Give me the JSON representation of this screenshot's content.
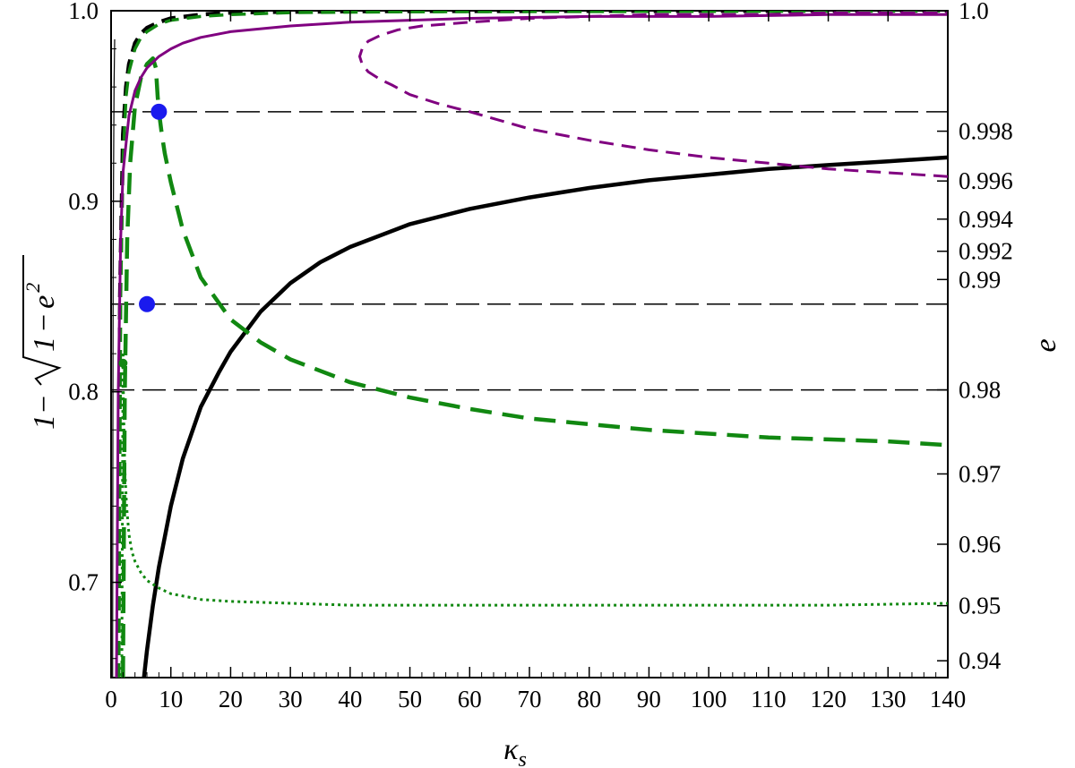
{
  "chart_data": {
    "type": "line",
    "title": "",
    "xlabel": "κ",
    "xlabel_sub": "s",
    "ylabel": "1 - √(1 - e²)",
    "ylabel_parts": [
      "1",
      "−",
      "1",
      "−",
      "e",
      "2"
    ],
    "ylabel_right": "e",
    "xlim": [
      0,
      140
    ],
    "ylim": [
      0.65,
      1.0
    ],
    "grid": false,
    "x_ticks": [
      0,
      10,
      20,
      30,
      40,
      50,
      60,
      70,
      80,
      90,
      100,
      110,
      120,
      130,
      140
    ],
    "x_tick_labels": [
      "0",
      "10",
      "20",
      "30",
      "40",
      "50",
      "60",
      "70",
      "80",
      "90",
      "100",
      "110",
      "120",
      "130",
      "140"
    ],
    "y_ticks": [
      0.7,
      0.8,
      0.9,
      1.0
    ],
    "y_tick_labels": [
      "0.7",
      "0.8",
      "0.9",
      "1.0"
    ],
    "right_ticks": [
      0.94,
      0.95,
      0.96,
      0.97,
      0.98,
      0.99,
      0.992,
      0.994,
      0.996,
      0.998,
      1.0
    ],
    "right_tick_labels": [
      "0.94",
      "0.95",
      "0.96",
      "0.97",
      "0.98",
      "0.99",
      "0.992",
      "0.994",
      "0.996",
      "0.998",
      "1.0"
    ],
    "horizontal_lines": [
      0.947,
      0.846,
      0.801
    ],
    "series": [
      {
        "color": "#000000",
        "style": "solid",
        "width": 4.5,
        "x": [
          5.5,
          6,
          7,
          8,
          10,
          12,
          15,
          18,
          20,
          25,
          30,
          35,
          40,
          50,
          60,
          70,
          80,
          90,
          100,
          110,
          120,
          130,
          140
        ],
        "y": [
          0.65,
          0.664,
          0.688,
          0.708,
          0.74,
          0.765,
          0.792,
          0.81,
          0.821,
          0.842,
          0.857,
          0.868,
          0.876,
          0.888,
          0.896,
          0.902,
          0.907,
          0.911,
          0.914,
          0.917,
          0.919,
          0.921,
          0.923
        ]
      },
      {
        "color": "#000000",
        "style": "dashed",
        "width": 4.5,
        "x": [
          1.2,
          1.5,
          2,
          2.5,
          3,
          4,
          5,
          6,
          8,
          10,
          15,
          20,
          30,
          50,
          140
        ],
        "y": [
          0.65,
          0.85,
          0.935,
          0.96,
          0.972,
          0.983,
          0.988,
          0.991,
          0.994,
          0.996,
          0.998,
          0.999,
          0.9995,
          0.9998,
          1.0
        ]
      },
      {
        "color": "#118811",
        "style": "longdash",
        "width": 4.5,
        "x": [
          2.0,
          2.3,
          2.7,
          3.2,
          4,
          5,
          6,
          7,
          7.5,
          7.8,
          8,
          8.5,
          9,
          10,
          12,
          15,
          20,
          25,
          30,
          40,
          50,
          60,
          70,
          80,
          90,
          100,
          110,
          120,
          130,
          140
        ],
        "y": [
          0.65,
          0.8,
          0.88,
          0.92,
          0.95,
          0.965,
          0.972,
          0.975,
          0.97,
          0.955,
          0.947,
          0.935,
          0.925,
          0.91,
          0.885,
          0.86,
          0.838,
          0.826,
          0.817,
          0.805,
          0.797,
          0.791,
          0.786,
          0.783,
          0.78,
          0.778,
          0.776,
          0.775,
          0.774,
          0.772
        ]
      },
      {
        "color": "#118811",
        "style": "dashed",
        "width": 3.5,
        "x": [
          1.3,
          1.6,
          2,
          2.5,
          3,
          4,
          5,
          6,
          8,
          10,
          15,
          20,
          30,
          50,
          140
        ],
        "y": [
          0.65,
          0.85,
          0.92,
          0.955,
          0.968,
          0.98,
          0.986,
          0.989,
          0.993,
          0.995,
          0.997,
          0.998,
          0.999,
          0.9995,
          0.9998
        ]
      },
      {
        "color": "#118811",
        "style": "dotted",
        "width": 3,
        "x": [
          2.0,
          2.1,
          2.3,
          2.6,
          3,
          3.5,
          4,
          5,
          6,
          8,
          10,
          15,
          20,
          30,
          40,
          60,
          80,
          100,
          120,
          140
        ],
        "y": [
          0.82,
          0.79,
          0.76,
          0.74,
          0.725,
          0.716,
          0.711,
          0.705,
          0.701,
          0.697,
          0.694,
          0.691,
          0.69,
          0.689,
          0.688,
          0.688,
          0.688,
          0.688,
          0.688,
          0.689
        ]
      },
      {
        "color": "#118811",
        "style": "dotted",
        "width": 3,
        "x": [
          2.0,
          1.95,
          1.9,
          1.85,
          1.8
        ],
        "y": [
          0.82,
          0.78,
          0.74,
          0.7,
          0.65
        ]
      },
      {
        "color": "#800080",
        "style": "solid",
        "width": 3,
        "x": [
          0.9,
          1.2,
          1.6,
          2,
          3,
          4,
          5,
          6,
          8,
          10,
          12,
          15,
          20,
          30,
          40,
          60,
          80,
          100,
          120,
          140
        ],
        "y": [
          0.65,
          0.8,
          0.88,
          0.915,
          0.945,
          0.958,
          0.965,
          0.97,
          0.976,
          0.98,
          0.983,
          0.986,
          0.989,
          0.992,
          0.994,
          0.996,
          0.997,
          0.997,
          0.998,
          0.998
        ]
      },
      {
        "color": "#800080",
        "style": "dashed",
        "width": 3,
        "x": [
          140,
          130,
          120,
          110,
          100,
          90,
          80,
          70,
          60,
          55,
          50,
          47,
          45,
          43,
          42,
          41.6,
          42,
          43,
          45,
          48,
          52,
          60,
          70,
          80,
          90,
          100,
          110,
          120,
          130,
          140
        ],
        "y": [
          0.913,
          0.915,
          0.917,
          0.92,
          0.923,
          0.927,
          0.932,
          0.938,
          0.947,
          0.951,
          0.956,
          0.961,
          0.964,
          0.968,
          0.972,
          0.976,
          0.98,
          0.984,
          0.987,
          0.99,
          0.992,
          0.994,
          0.996,
          0.997,
          0.998,
          0.998,
          0.998,
          0.999,
          0.999,
          0.999
        ]
      },
      {
        "color": "#000000",
        "style": "solid",
        "width": 1.2,
        "x": [
          0.25,
          0.27,
          0.3,
          0.35,
          0.4,
          0.5,
          0.6
        ],
        "y": [
          0.65,
          0.7,
          0.78,
          0.86,
          0.91,
          0.96,
          0.985
        ]
      }
    ],
    "markers": [
      {
        "x": 8,
        "y": 0.947,
        "color": "#1a1aee",
        "size": 9
      },
      {
        "x": 6,
        "y": 0.846,
        "color": "#1a1aee",
        "size": 9
      },
      {
        "x": 2.0,
        "y": 0.815,
        "color": "#118811",
        "size": 5
      }
    ]
  }
}
